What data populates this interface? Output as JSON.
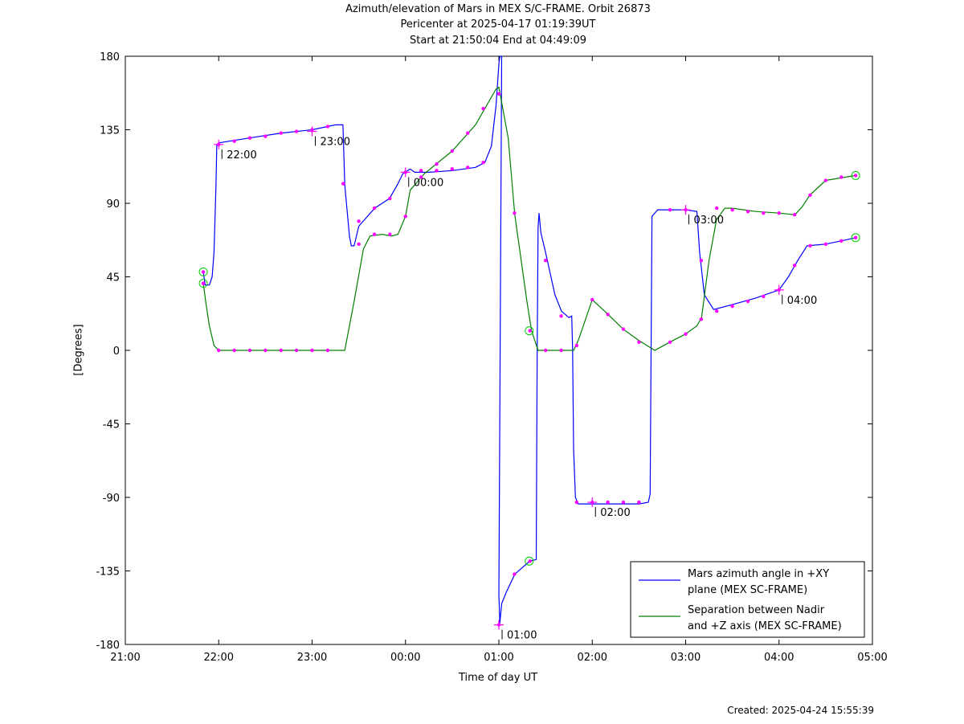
{
  "header": {
    "title_line1": "Azimuth/elevation of Mars in MEX S/C-FRAME.  Orbit 26873",
    "title_line2": "Pericenter at 2025-04-17 01:19:39UT",
    "title_line3": "Start at 21:50:04 End at 04:49:09"
  },
  "footer": {
    "created": "Created: 2025-04-24 15:55:39"
  },
  "colors": {
    "azimuth": "#0000ff",
    "separation": "#008000",
    "markers": "#ff00ff",
    "circles": "#00cc00"
  },
  "chart_data": {
    "type": "line",
    "xlabel": "Time of day UT",
    "ylabel": "[Degrees]",
    "x_unit": "hours since 21:00 UT",
    "xlim": [
      0,
      8
    ],
    "ylim": [
      -180,
      180
    ],
    "xticks": [
      {
        "v": 0,
        "label": "21:00"
      },
      {
        "v": 1,
        "label": "22:00"
      },
      {
        "v": 2,
        "label": "23:00"
      },
      {
        "v": 3,
        "label": "00:00"
      },
      {
        "v": 4,
        "label": "01:00"
      },
      {
        "v": 5,
        "label": "02:00"
      },
      {
        "v": 6,
        "label": "03:00"
      },
      {
        "v": 7,
        "label": "04:00"
      },
      {
        "v": 8,
        "label": "05:00"
      }
    ],
    "yticks": [
      {
        "v": 180,
        "label": "180"
      },
      {
        "v": 135,
        "label": "135"
      },
      {
        "v": 90,
        "label": "90"
      },
      {
        "v": 45,
        "label": "45"
      },
      {
        "v": 0,
        "label": "0"
      },
      {
        "v": -45,
        "label": "-45"
      },
      {
        "v": -90,
        "label": "-90"
      },
      {
        "v": -135,
        "label": "-135"
      },
      {
        "v": -180,
        "label": "-180"
      }
    ],
    "series": [
      {
        "name": "Mars azimuth angle in +XY plane (MEX SC-FRAME)",
        "legend_lines": [
          "Mars azimuth angle in +XY",
          "plane (MEX SC-FRAME)"
        ],
        "points": [
          [
            0.835,
            48
          ],
          [
            0.855,
            40
          ],
          [
            0.9,
            40
          ],
          [
            0.93,
            45
          ],
          [
            0.95,
            60
          ],
          [
            0.97,
            100
          ],
          [
            0.98,
            126
          ],
          [
            1.0,
            127
          ],
          [
            1.33,
            130
          ],
          [
            1.67,
            133
          ],
          [
            2.0,
            135
          ],
          [
            2.25,
            138
          ],
          [
            2.33,
            138
          ],
          [
            2.35,
            101
          ],
          [
            2.4,
            70
          ],
          [
            2.42,
            64
          ],
          [
            2.45,
            64
          ],
          [
            2.5,
            76
          ],
          [
            2.67,
            87
          ],
          [
            2.83,
            93
          ],
          [
            2.92,
            102
          ],
          [
            2.97,
            108
          ],
          [
            3.05,
            111
          ],
          [
            3.1,
            109
          ],
          [
            3.25,
            109
          ],
          [
            3.5,
            110
          ],
          [
            3.75,
            112
          ],
          [
            3.85,
            115
          ],
          [
            3.92,
            125
          ],
          [
            3.97,
            150
          ],
          [
            4.0,
            175
          ],
          [
            4.01,
            180
          ],
          [
            4.03,
            180
          ],
          [
            4.0,
            -150
          ],
          [
            4.01,
            -167
          ],
          [
            4.03,
            -155
          ],
          [
            4.08,
            -148
          ],
          [
            4.17,
            -137
          ],
          [
            4.33,
            -129
          ],
          [
            4.4,
            -128
          ],
          [
            4.41,
            0
          ],
          [
            4.42,
            75
          ],
          [
            4.43,
            84
          ],
          [
            4.45,
            72
          ],
          [
            4.5,
            60
          ],
          [
            4.6,
            34
          ],
          [
            4.67,
            24
          ],
          [
            4.75,
            20
          ],
          [
            4.78,
            21
          ],
          [
            4.79,
            0
          ],
          [
            4.8,
            -60
          ],
          [
            4.82,
            -90
          ],
          [
            4.85,
            -94
          ],
          [
            5.0,
            -94
          ],
          [
            5.25,
            -94
          ],
          [
            5.5,
            -94
          ],
          [
            5.6,
            -93
          ],
          [
            5.62,
            -88
          ],
          [
            5.64,
            82
          ],
          [
            5.7,
            86
          ],
          [
            6.0,
            86
          ],
          [
            6.12,
            85
          ],
          [
            6.15,
            60
          ],
          [
            6.2,
            34
          ],
          [
            6.3,
            25
          ],
          [
            6.5,
            28
          ],
          [
            6.75,
            32
          ],
          [
            7.0,
            37
          ],
          [
            7.1,
            45
          ],
          [
            7.2,
            55
          ],
          [
            7.3,
            64
          ],
          [
            7.5,
            65
          ],
          [
            7.75,
            68
          ],
          [
            7.82,
            69
          ]
        ]
      },
      {
        "name": "Separation between Nadir and +Z axis (MEX SC-FRAME)",
        "legend_lines": [
          "Separation between Nadir",
          "and +Z axis (MEX SC-FRAME)"
        ],
        "points": [
          [
            0.835,
            41
          ],
          [
            0.86,
            30
          ],
          [
            0.9,
            15
          ],
          [
            0.95,
            3
          ],
          [
            1.0,
            0
          ],
          [
            1.5,
            0
          ],
          [
            2.0,
            0
          ],
          [
            2.35,
            0
          ],
          [
            2.45,
            30
          ],
          [
            2.55,
            62
          ],
          [
            2.62,
            70
          ],
          [
            2.75,
            71
          ],
          [
            2.85,
            70
          ],
          [
            2.92,
            71
          ],
          [
            2.97,
            78
          ],
          [
            3.0,
            82
          ],
          [
            3.05,
            98
          ],
          [
            3.2,
            108
          ],
          [
            3.5,
            122
          ],
          [
            3.75,
            138
          ],
          [
            3.85,
            148
          ],
          [
            3.93,
            156
          ],
          [
            3.97,
            160
          ],
          [
            4.0,
            161
          ],
          [
            4.1,
            130
          ],
          [
            4.17,
            83
          ],
          [
            4.3,
            30
          ],
          [
            4.35,
            12
          ],
          [
            4.42,
            0
          ],
          [
            4.75,
            0
          ],
          [
            4.8,
            0
          ],
          [
            4.85,
            6
          ],
          [
            5.0,
            31
          ],
          [
            5.17,
            22
          ],
          [
            5.33,
            13
          ],
          [
            5.5,
            6
          ],
          [
            5.67,
            0
          ],
          [
            5.83,
            5
          ],
          [
            6.0,
            10
          ],
          [
            6.12,
            15
          ],
          [
            6.17,
            20
          ],
          [
            6.25,
            55
          ],
          [
            6.33,
            80
          ],
          [
            6.42,
            87
          ],
          [
            6.5,
            87
          ],
          [
            6.75,
            85
          ],
          [
            7.0,
            84
          ],
          [
            7.17,
            83
          ],
          [
            7.25,
            88
          ],
          [
            7.33,
            95
          ],
          [
            7.5,
            104
          ],
          [
            7.82,
            107
          ]
        ]
      }
    ],
    "markers": [
      [
        0.835,
        48
      ],
      [
        0.835,
        41
      ],
      [
        1.0,
        126
      ],
      [
        1.167,
        128
      ],
      [
        1.333,
        130
      ],
      [
        1.5,
        131
      ],
      [
        1.667,
        133
      ],
      [
        1.833,
        134
      ],
      [
        2.0,
        135
      ],
      [
        2.167,
        137
      ],
      [
        2.333,
        102
      ],
      [
        2.5,
        79
      ],
      [
        2.667,
        87
      ],
      [
        2.833,
        93
      ],
      [
        3.0,
        109
      ],
      [
        3.167,
        110
      ],
      [
        3.333,
        110
      ],
      [
        3.5,
        111
      ],
      [
        3.667,
        112
      ],
      [
        3.833,
        115
      ],
      [
        4.0,
        -168
      ],
      [
        4.167,
        -137
      ],
      [
        4.333,
        -129
      ],
      [
        4.5,
        55
      ],
      [
        4.667,
        21
      ],
      [
        1.0,
        0
      ],
      [
        1.167,
        0
      ],
      [
        1.333,
        0
      ],
      [
        1.5,
        0
      ],
      [
        1.667,
        0
      ],
      [
        1.833,
        0
      ],
      [
        2.0,
        0
      ],
      [
        2.167,
        0
      ],
      [
        2.5,
        65
      ],
      [
        2.667,
        71
      ],
      [
        2.833,
        71
      ],
      [
        3.0,
        82
      ],
      [
        3.167,
        106
      ],
      [
        3.333,
        114
      ],
      [
        3.5,
        122
      ],
      [
        3.667,
        133
      ],
      [
        3.833,
        148
      ],
      [
        4.0,
        157
      ],
      [
        4.167,
        84
      ],
      [
        4.333,
        12
      ],
      [
        4.5,
        0
      ],
      [
        4.667,
        0
      ],
      [
        4.833,
        3
      ],
      [
        5.0,
        31
      ],
      [
        5.167,
        22
      ],
      [
        5.333,
        13
      ],
      [
        5.5,
        5
      ],
      [
        5.833,
        5
      ],
      [
        6.0,
        10
      ],
      [
        6.167,
        19
      ],
      [
        6.167,
        55
      ],
      [
        6.333,
        24
      ],
      [
        6.5,
        27
      ],
      [
        6.667,
        30
      ],
      [
        6.833,
        33
      ],
      [
        7.0,
        37
      ],
      [
        7.167,
        52
      ],
      [
        7.333,
        64
      ],
      [
        7.5,
        65
      ],
      [
        7.667,
        67
      ],
      [
        7.82,
        69
      ],
      [
        4.833,
        -93
      ],
      [
        5.0,
        -93
      ],
      [
        5.167,
        -93
      ],
      [
        5.333,
        -93
      ],
      [
        5.5,
        -93
      ],
      [
        5.833,
        86
      ],
      [
        6.0,
        86
      ],
      [
        6.333,
        87
      ],
      [
        6.5,
        86
      ],
      [
        6.667,
        85
      ],
      [
        6.833,
        84
      ],
      [
        7.0,
        84
      ],
      [
        7.167,
        83
      ],
      [
        7.333,
        95
      ],
      [
        7.5,
        104
      ],
      [
        7.667,
        106
      ],
      [
        7.82,
        107
      ],
      [
        0.835,
        41
      ]
    ],
    "circle_markers": [
      [
        0.835,
        48
      ],
      [
        0.835,
        41
      ],
      [
        4.325,
        12
      ],
      [
        4.325,
        -129
      ],
      [
        7.82,
        107
      ],
      [
        7.82,
        69
      ]
    ],
    "time_annotations": [
      {
        "x": 1.0,
        "y": 126,
        "label": "22:00"
      },
      {
        "x": 2.0,
        "y": 134,
        "label": "23:00"
      },
      {
        "x": 3.0,
        "y": 109,
        "label": "00:00"
      },
      {
        "x": 4.0,
        "y": -168,
        "label": "01:00"
      },
      {
        "x": 5.0,
        "y": -93,
        "label": "02:00"
      },
      {
        "x": 6.0,
        "y": 86,
        "label": "03:00"
      },
      {
        "x": 7.0,
        "y": 37,
        "label": "04:00"
      }
    ],
    "legend_position": "bottom-right",
    "grid": false
  }
}
